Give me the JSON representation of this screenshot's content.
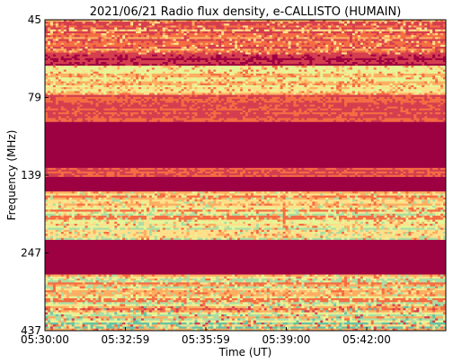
{
  "chart_data": {
    "type": "heatmap",
    "title": "2021/06/21  Radio flux density, e-CALLISTO (HUMAIN)",
    "xlabel": "Time (UT)",
    "ylabel": "Frequency (MHz)",
    "x_ticks": [
      "05:30:00",
      "05:32:59",
      "05:35:59",
      "05:39:00",
      "05:42:00"
    ],
    "y_ticks": [
      "45",
      "79",
      "139",
      "247",
      "437"
    ],
    "y_range_mhz": [
      45,
      437
    ],
    "y_direction": "frequency increases downward",
    "colormap": "Spectral_r",
    "colors": {
      "saturated_band": "#9e0142",
      "background": "#d53e4f",
      "mid": "#f46d43",
      "high": "#fdae61",
      "bright": "#fee08b",
      "pale": "#e6f598",
      "peak": "#abdda4",
      "max": "#66c2a5"
    },
    "bands": [
      {
        "from_mhz": 45,
        "to_mhz": 58,
        "level": "noisy high"
      },
      {
        "from_mhz": 58,
        "to_mhz": 63,
        "level": "dark"
      },
      {
        "from_mhz": 63,
        "to_mhz": 78,
        "level": "high with bright streaks"
      },
      {
        "from_mhz": 78,
        "to_mhz": 95,
        "level": "mid"
      },
      {
        "from_mhz": 95,
        "to_mhz": 133,
        "level": "saturated"
      },
      {
        "from_mhz": 133,
        "to_mhz": 142,
        "level": "mid"
      },
      {
        "from_mhz": 142,
        "to_mhz": 158,
        "level": "saturated"
      },
      {
        "from_mhz": 158,
        "to_mhz": 225,
        "level": "bright striped"
      },
      {
        "from_mhz": 225,
        "to_mhz": 290,
        "level": "saturated"
      },
      {
        "from_mhz": 290,
        "to_mhz": 360,
        "level": "bright striped"
      },
      {
        "from_mhz": 360,
        "to_mhz": 437,
        "level": "mixed bright"
      }
    ]
  }
}
